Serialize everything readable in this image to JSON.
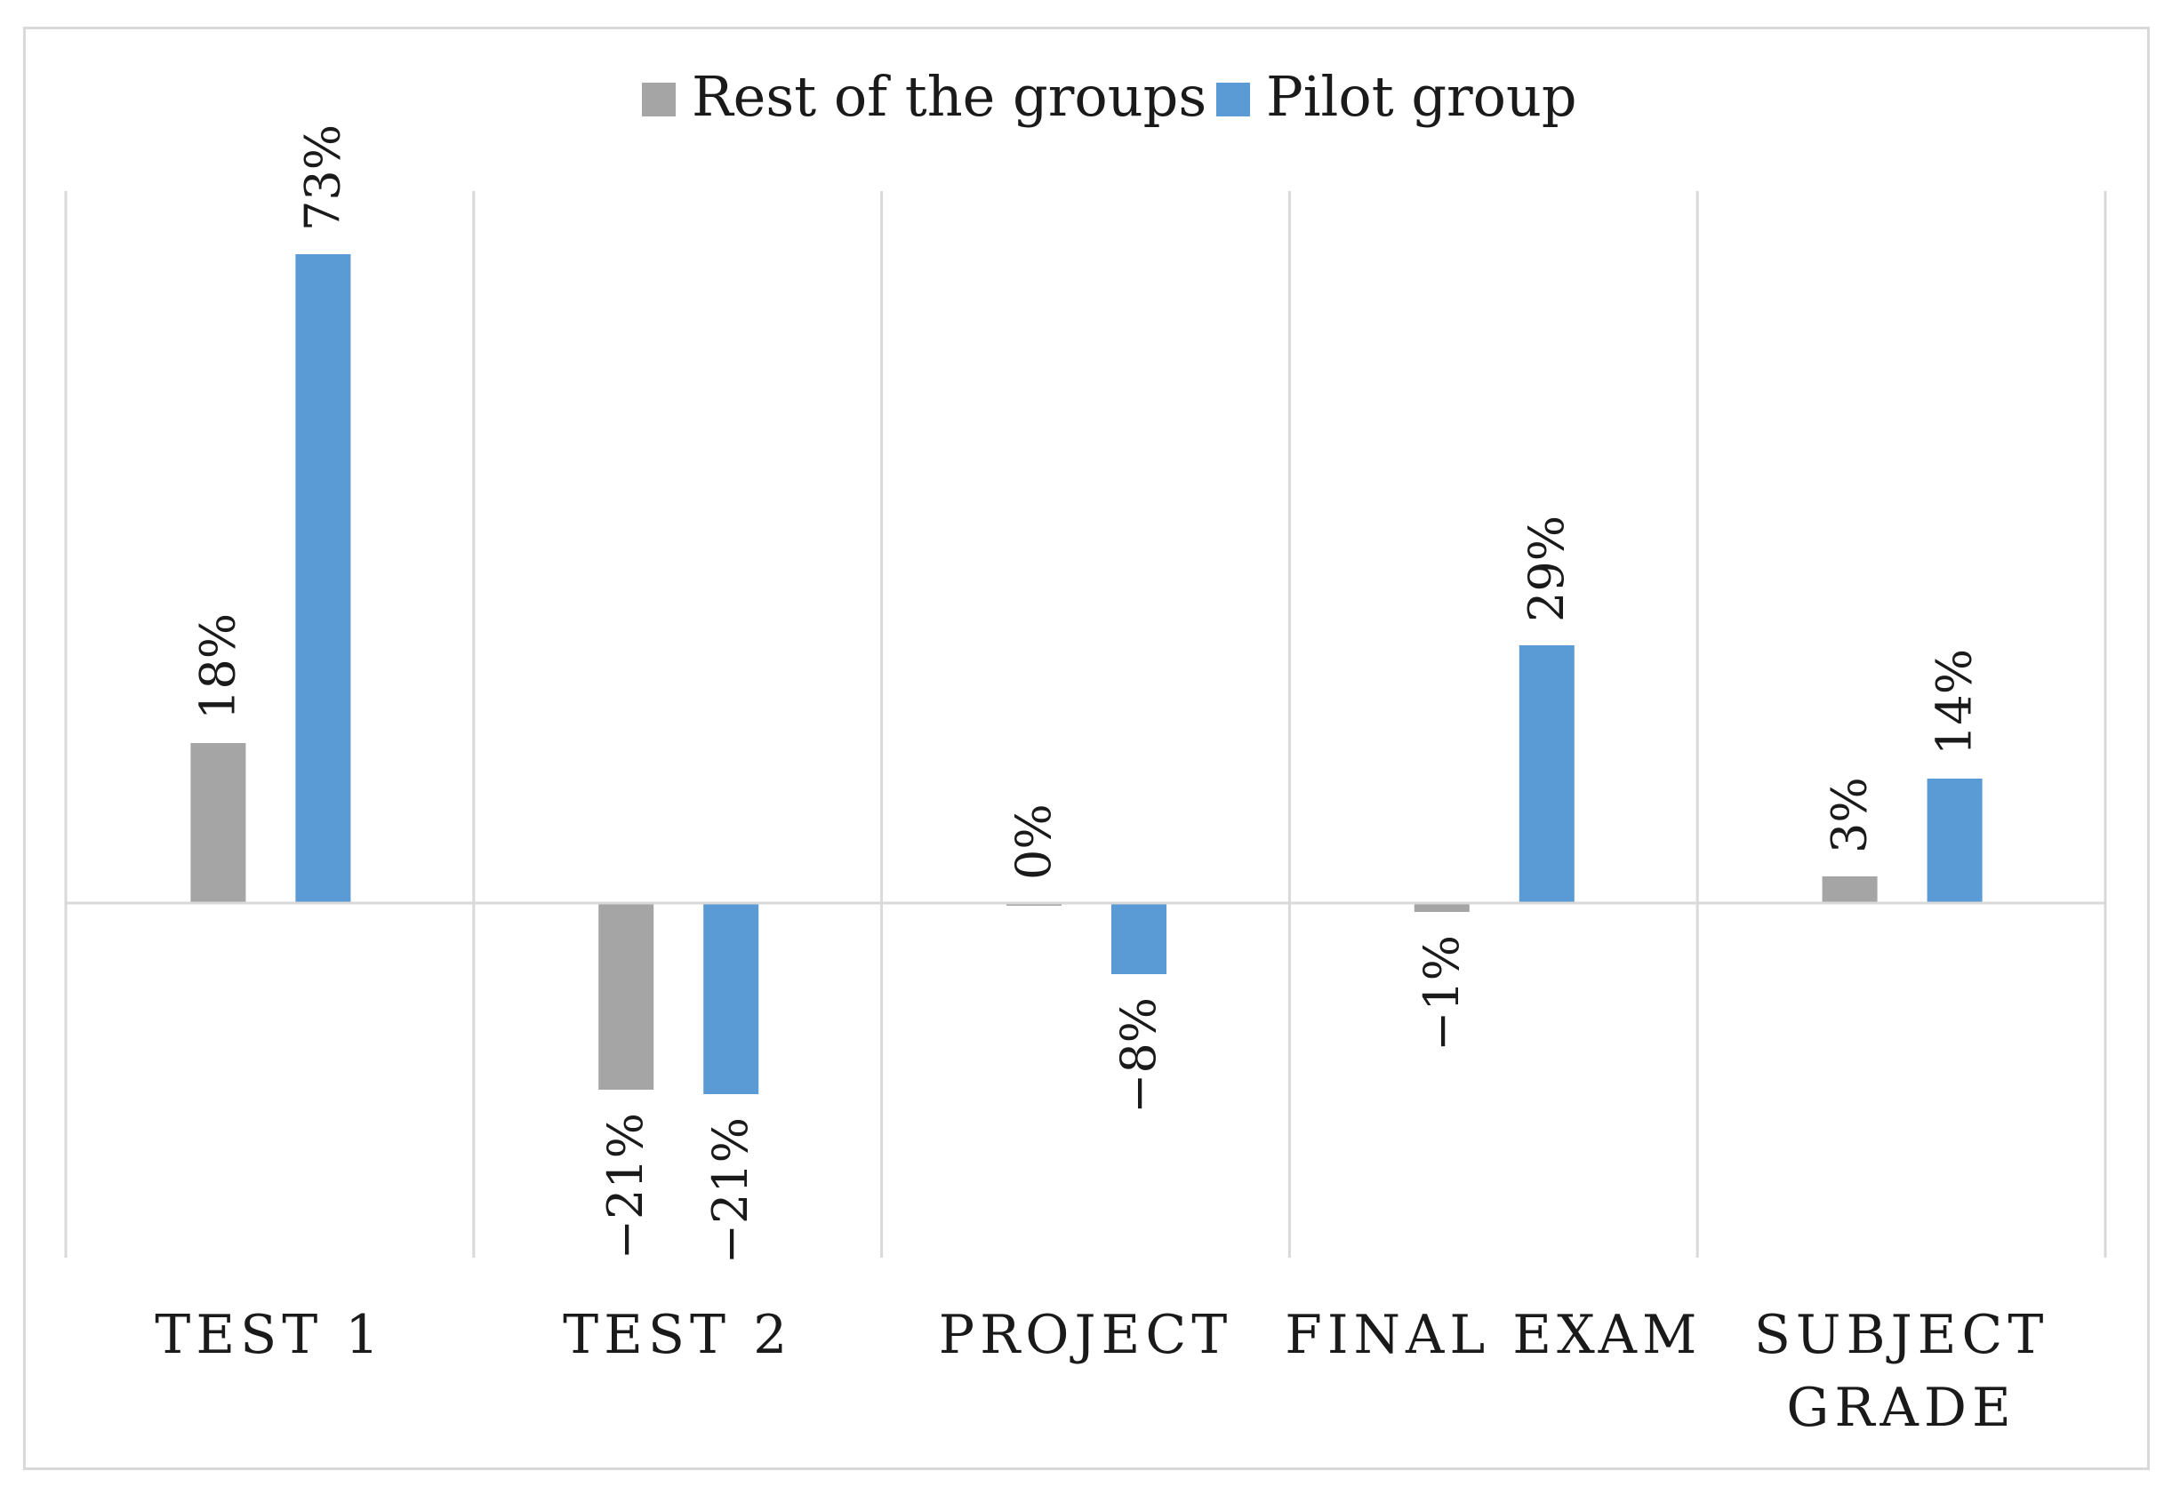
{
  "chart_data": {
    "type": "bar",
    "title": "",
    "xlabel": "",
    "ylabel": "",
    "ylim": [
      -30,
      80
    ],
    "grid": false,
    "legend_position": "top-center",
    "categories": [
      [
        "TEST 1"
      ],
      [
        "TEST 2"
      ],
      [
        "PROJECT"
      ],
      [
        "FINAL EXAM"
      ],
      [
        "SUBJECT",
        "GRADE"
      ]
    ],
    "series": [
      {
        "name": "Rest of the groups",
        "color": "#a5a5a5",
        "values": [
          18,
          -21,
          0,
          -1,
          3
        ],
        "labels": [
          "18%",
          "−21%",
          "0%",
          "−1%",
          "3%"
        ]
      },
      {
        "name": "Pilot group",
        "color": "#5b9bd5",
        "values": [
          73,
          -21.5,
          -8,
          29,
          14
        ],
        "labels": [
          "73%",
          "−21%",
          "−8%",
          "29%",
          "14%"
        ]
      }
    ]
  }
}
